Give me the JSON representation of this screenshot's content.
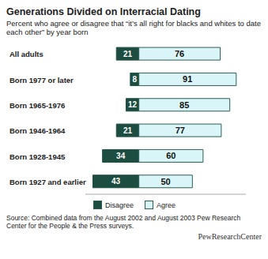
{
  "chart_data": {
    "type": "bar",
    "orientation": "horizontal",
    "title": "Generations Divided on Interracial Dating",
    "subtitle": "Percent who agree or disagree that “it’s all right for blacks and whites to date each other” by year born",
    "categories": [
      "All adults",
      "Born 1977 or later",
      "Born 1965-1976",
      "Born 1946-1964",
      "Born 1928-1945",
      "Born 1927 and earlier"
    ],
    "series": [
      {
        "name": "Disagree",
        "color": "#1c4d40",
        "values": [
          21,
          8,
          12,
          21,
          34,
          43
        ]
      },
      {
        "name": "Agree",
        "color": "#daf5f7",
        "values": [
          76,
          91,
          85,
          77,
          60,
          50
        ]
      }
    ],
    "xlim": [
      -50,
      100
    ],
    "data_labels": true,
    "tick_labels": "y",
    "legend": "bottom",
    "source": "Source: Combined data from the August 2002 and August 2003 Pew Research Center for the People & the Press surveys.",
    "logo": "PewResearchCenter"
  }
}
